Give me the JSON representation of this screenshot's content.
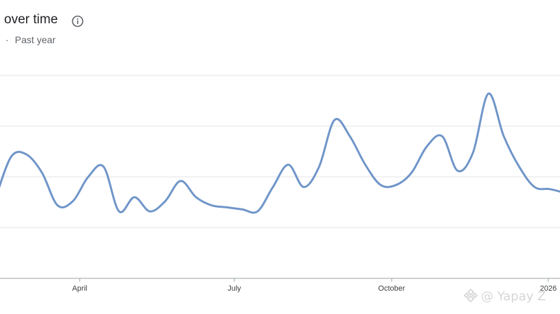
{
  "header": {
    "title": "over time",
    "subtitle_separator": "·",
    "subtitle": "Past year",
    "info_icon": "info-icon"
  },
  "watermark": {
    "text": "@ Yapay Z",
    "logo_icon": "binance-logo-icon"
  },
  "colors": {
    "line": "#6f95c9",
    "grid": "#e3e3e3",
    "axis": "#9aa0a6"
  },
  "chart_data": {
    "type": "line",
    "title": "",
    "xlabel": "",
    "ylabel": "",
    "x_tick_labels": [
      "April",
      "July",
      "October",
      "2026"
    ],
    "ylim": [
      0,
      100
    ],
    "grid": true,
    "legend": "none",
    "series": [
      {
        "values": [
          40,
          60,
          61,
          52,
          36,
          38,
          50,
          55,
          33,
          40,
          33,
          38,
          48,
          40,
          36,
          35,
          34,
          33,
          45,
          56,
          45,
          55,
          78,
          70,
          56,
          46,
          46,
          52,
          65,
          70,
          53,
          62,
          91,
          70,
          55,
          45,
          44,
          42
        ]
      }
    ]
  }
}
